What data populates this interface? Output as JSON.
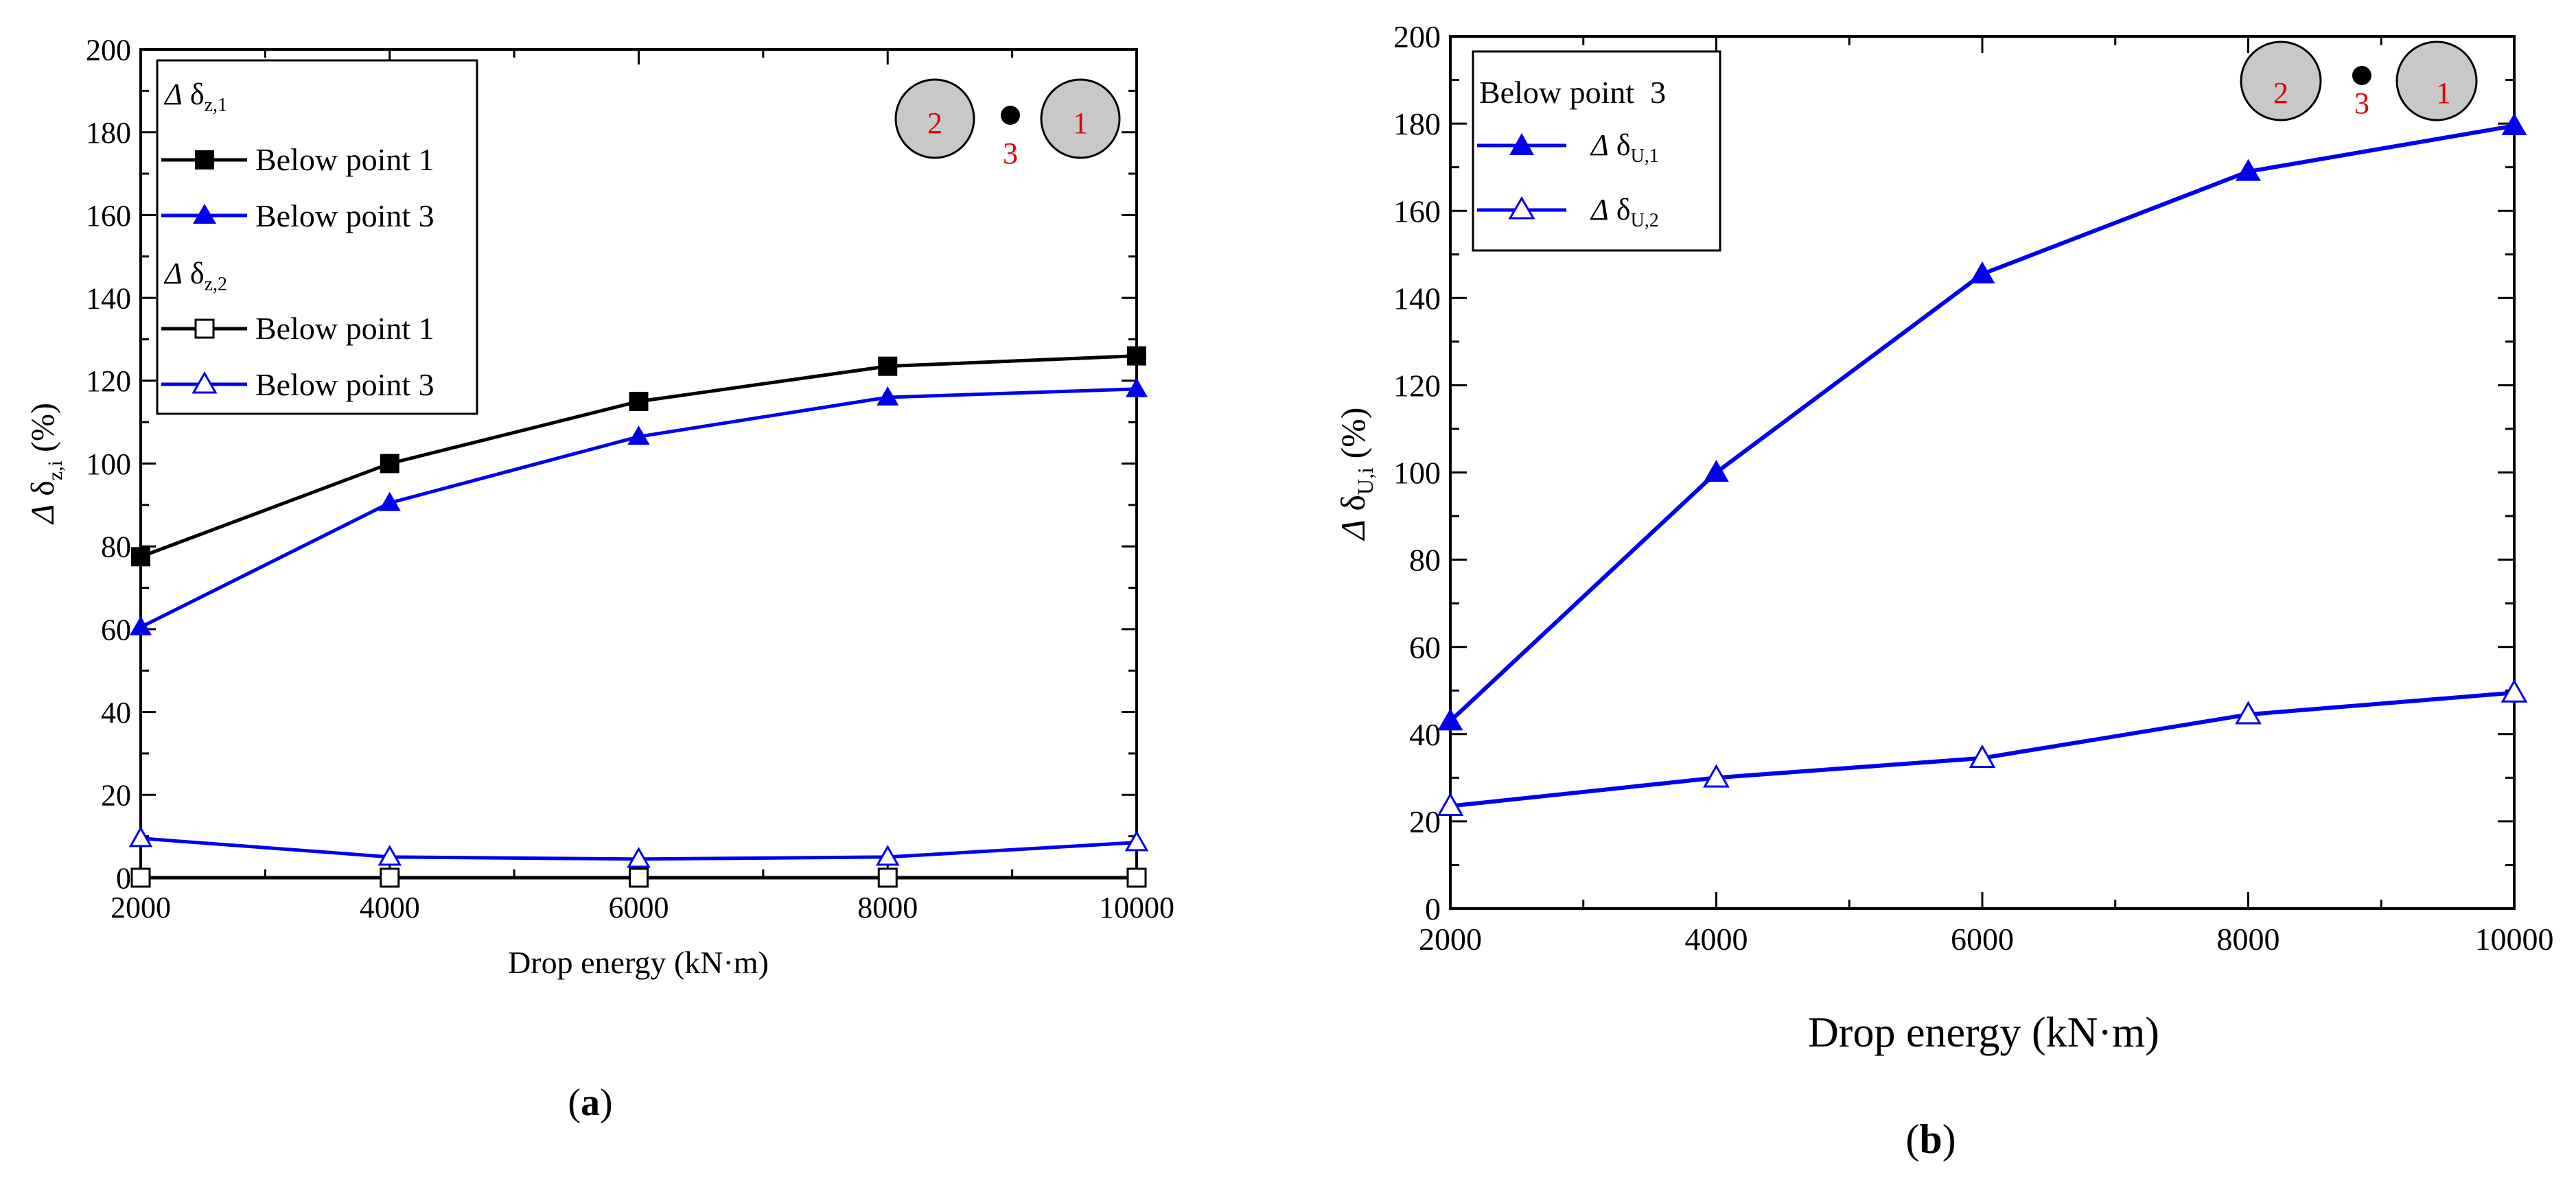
{
  "chart_data": [
    {
      "type": "line",
      "panel_label": "(a)",
      "xlabel": "Drop energy (kN·m)",
      "ylabel": "Δδz,i (%)",
      "x": [
        2000,
        4000,
        6000,
        8000,
        10000
      ],
      "xlim": [
        2000,
        10000
      ],
      "ylim": [
        0,
        200
      ],
      "xticks": [
        2000,
        4000,
        6000,
        8000,
        10000
      ],
      "yticks": [
        0,
        20,
        40,
        60,
        80,
        100,
        120,
        140,
        160,
        180,
        200
      ],
      "legend_groups": [
        "Δδz,1",
        "Δδz,2"
      ],
      "series": [
        {
          "name": "Below point 1",
          "group": "Δδz,1",
          "color": "#000000",
          "marker": "square-filled",
          "values": [
            77.5,
            100,
            115,
            123.5,
            126
          ]
        },
        {
          "name": "Below point 3",
          "group": "Δδz,1",
          "color": "#0000ee",
          "marker": "triangle-filled",
          "values": [
            60.5,
            90.5,
            106.5,
            116,
            118
          ]
        },
        {
          "name": "Below point 1",
          "group": "Δδz,2",
          "color": "#000000",
          "marker": "square-open",
          "values": [
            0,
            0,
            0,
            0,
            0
          ]
        },
        {
          "name": "Below point 3",
          "group": "Δδz,2",
          "color": "#0000ee",
          "marker": "triangle-open",
          "values": [
            9.5,
            5,
            4.5,
            5,
            8.5
          ]
        }
      ],
      "inset_labels": [
        "2",
        "3",
        "1"
      ]
    },
    {
      "type": "line",
      "panel_label": "(b)",
      "xlabel": "Drop energy (kN·m)",
      "ylabel": "Δδu,i (%)",
      "x": [
        2000,
        4000,
        6000,
        8000,
        10000
      ],
      "xlim": [
        2000,
        10000
      ],
      "ylim": [
        0,
        200
      ],
      "xticks": [
        2000,
        4000,
        6000,
        8000,
        10000
      ],
      "yticks": [
        0,
        20,
        40,
        60,
        80,
        100,
        120,
        140,
        160,
        180,
        200
      ],
      "legend_title": "Below point  3",
      "series": [
        {
          "name": "Δδu,1",
          "color": "#0000ee",
          "marker": "triangle-filled",
          "values": [
            43,
            100,
            145.5,
            169,
            179.5
          ]
        },
        {
          "name": "Δδu,2",
          "color": "#0000ee",
          "marker": "triangle-open",
          "values": [
            23.5,
            30,
            34.5,
            44.5,
            49.5
          ]
        }
      ],
      "inset_labels": [
        "2",
        "3",
        "1"
      ]
    }
  ]
}
